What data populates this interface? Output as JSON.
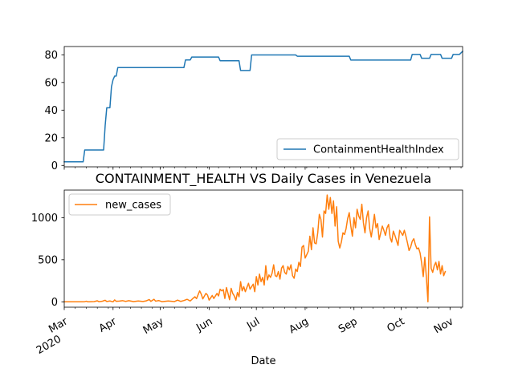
{
  "chart_data": [
    {
      "type": "line",
      "title": "",
      "xlabel": "",
      "ylabel": "",
      "ylim": [
        -1,
        86
      ],
      "yticks": [
        0,
        20,
        40,
        60,
        80
      ],
      "legend": "bottom-right",
      "grid": false,
      "series": [
        {
          "name": "ContainmentHealthIndex",
          "color": "#1f77b4",
          "points": [
            [
              "2020-03-01",
              2.6
            ],
            [
              "2020-03-13",
              2.6
            ],
            [
              "2020-03-14",
              11.2
            ],
            [
              "2020-03-26",
              11.2
            ],
            [
              "2020-03-27",
              29
            ],
            [
              "2020-03-28",
              41.7
            ],
            [
              "2020-03-30",
              41.7
            ],
            [
              "2020-03-31",
              57
            ],
            [
              "2020-04-01",
              62
            ],
            [
              "2020-04-02",
              64.6
            ],
            [
              "2020-04-03",
              64.6
            ],
            [
              "2020-04-04",
              70.8
            ],
            [
              "2020-05-16",
              70.8
            ],
            [
              "2020-05-17",
              76.3
            ],
            [
              "2020-05-20",
              76.3
            ],
            [
              "2020-05-21",
              78.4
            ],
            [
              "2020-06-07",
              78.4
            ],
            [
              "2020-06-08",
              75.7
            ],
            [
              "2020-06-20",
              75.7
            ],
            [
              "2020-06-21",
              68.7
            ],
            [
              "2020-06-27",
              68.7
            ],
            [
              "2020-06-28",
              79.9
            ],
            [
              "2020-07-26",
              79.9
            ],
            [
              "2020-07-27",
              79
            ],
            [
              "2020-08-29",
              79
            ],
            [
              "2020-08-30",
              76.2
            ],
            [
              "2020-10-07",
              76.2
            ],
            [
              "2020-10-08",
              80.3
            ],
            [
              "2020-10-13",
              80.3
            ],
            [
              "2020-10-14",
              77.5
            ],
            [
              "2020-10-19",
              77.5
            ],
            [
              "2020-10-20",
              80.3
            ],
            [
              "2020-10-26",
              80.3
            ],
            [
              "2020-10-27",
              77.5
            ],
            [
              "2020-11-02",
              77.5
            ],
            [
              "2020-11-03",
              80.3
            ],
            [
              "2020-11-07",
              80.3
            ],
            [
              "2020-11-09",
              82.5
            ]
          ]
        }
      ]
    },
    {
      "type": "line",
      "title": "CONTAINMENT_HEALTH VS Daily Cases in Venezuela",
      "xlabel": "Date",
      "ylabel": "",
      "ylim": [
        -64,
        1328
      ],
      "yticks": [
        0,
        500,
        1000
      ],
      "legend": "top-left",
      "grid": false,
      "series": [
        {
          "name": "new_cases",
          "color": "#ff7f0e",
          "points": [
            [
              "2020-03-01",
              0
            ],
            [
              "2020-03-13",
              0
            ],
            [
              "2020-03-14",
              2
            ],
            [
              "2020-03-15",
              7
            ],
            [
              "2020-03-16",
              0
            ],
            [
              "2020-03-17",
              0
            ],
            [
              "2020-03-20",
              3
            ],
            [
              "2020-03-22",
              12
            ],
            [
              "2020-03-23",
              2
            ],
            [
              "2020-03-25",
              6
            ],
            [
              "2020-03-27",
              18
            ],
            [
              "2020-03-28",
              4
            ],
            [
              "2020-03-30",
              10
            ],
            [
              "2020-04-01",
              0
            ],
            [
              "2020-04-02",
              22
            ],
            [
              "2020-04-03",
              6
            ],
            [
              "2020-04-05",
              9
            ],
            [
              "2020-04-07",
              14
            ],
            [
              "2020-04-09",
              5
            ],
            [
              "2020-04-11",
              13
            ],
            [
              "2020-04-14",
              3
            ],
            [
              "2020-04-17",
              10
            ],
            [
              "2020-04-20",
              4
            ],
            [
              "2020-04-22",
              11
            ],
            [
              "2020-04-24",
              27
            ],
            [
              "2020-04-25",
              5
            ],
            [
              "2020-04-27",
              30
            ],
            [
              "2020-04-28",
              8
            ],
            [
              "2020-04-30",
              15
            ],
            [
              "2020-05-02",
              2
            ],
            [
              "2020-05-06",
              10
            ],
            [
              "2020-05-10",
              3
            ],
            [
              "2020-05-12",
              20
            ],
            [
              "2020-05-14",
              5
            ],
            [
              "2020-05-16",
              15
            ],
            [
              "2020-05-18",
              30
            ],
            [
              "2020-05-20",
              10
            ],
            [
              "2020-05-22",
              45
            ],
            [
              "2020-05-23",
              60
            ],
            [
              "2020-05-24",
              38
            ],
            [
              "2020-05-26",
              130
            ],
            [
              "2020-05-27",
              92
            ],
            [
              "2020-05-28",
              35
            ],
            [
              "2020-05-30",
              100
            ],
            [
              "2020-05-31",
              80
            ],
            [
              "2020-06-01",
              20
            ],
            [
              "2020-06-03",
              75
            ],
            [
              "2020-06-04",
              40
            ],
            [
              "2020-06-06",
              100
            ],
            [
              "2020-06-07",
              70
            ],
            [
              "2020-06-08",
              150
            ],
            [
              "2020-06-09",
              130
            ],
            [
              "2020-06-10",
              145
            ],
            [
              "2020-06-11",
              40
            ],
            [
              "2020-06-12",
              170
            ],
            [
              "2020-06-13",
              100
            ],
            [
              "2020-06-14",
              25
            ],
            [
              "2020-06-15",
              160
            ],
            [
              "2020-06-16",
              100
            ],
            [
              "2020-06-17",
              70
            ],
            [
              "2020-06-18",
              20
            ],
            [
              "2020-06-19",
              110
            ],
            [
              "2020-06-20",
              60
            ],
            [
              "2020-06-21",
              240
            ],
            [
              "2020-06-22",
              130
            ],
            [
              "2020-06-23",
              180
            ],
            [
              "2020-06-24",
              120
            ],
            [
              "2020-06-26",
              220
            ],
            [
              "2020-06-27",
              150
            ],
            [
              "2020-06-29",
              210
            ],
            [
              "2020-06-30",
              120
            ],
            [
              "2020-07-01",
              300
            ],
            [
              "2020-07-02",
              200
            ],
            [
              "2020-07-03",
              330
            ],
            [
              "2020-07-04",
              240
            ],
            [
              "2020-07-05",
              290
            ],
            [
              "2020-07-06",
              200
            ],
            [
              "2020-07-07",
              430
            ],
            [
              "2020-07-08",
              260
            ],
            [
              "2020-07-09",
              320
            ],
            [
              "2020-07-10",
              290
            ],
            [
              "2020-07-11",
              340
            ],
            [
              "2020-07-12",
              440
            ],
            [
              "2020-07-13",
              310
            ],
            [
              "2020-07-14",
              300
            ],
            [
              "2020-07-15",
              360
            ],
            [
              "2020-07-16",
              270
            ],
            [
              "2020-07-17",
              400
            ],
            [
              "2020-07-18",
              430
            ],
            [
              "2020-07-19",
              350
            ],
            [
              "2020-07-20",
              330
            ],
            [
              "2020-07-21",
              420
            ],
            [
              "2020-07-22",
              380
            ],
            [
              "2020-07-23",
              440
            ],
            [
              "2020-07-24",
              310
            ],
            [
              "2020-07-25",
              280
            ],
            [
              "2020-07-26",
              390
            ],
            [
              "2020-07-27",
              360
            ],
            [
              "2020-07-28",
              470
            ],
            [
              "2020-07-29",
              420
            ],
            [
              "2020-07-30",
              650
            ],
            [
              "2020-07-31",
              670
            ],
            [
              "2020-08-01",
              520
            ],
            [
              "2020-08-02",
              560
            ],
            [
              "2020-08-03",
              600
            ],
            [
              "2020-08-04",
              780
            ],
            [
              "2020-08-05",
              620
            ],
            [
              "2020-08-06",
              880
            ],
            [
              "2020-08-07",
              700
            ],
            [
              "2020-08-08",
              690
            ],
            [
              "2020-08-09",
              820
            ],
            [
              "2020-08-10",
              1040
            ],
            [
              "2020-08-11",
              980
            ],
            [
              "2020-08-12",
              770
            ],
            [
              "2020-08-13",
              1080
            ],
            [
              "2020-08-14",
              1050
            ],
            [
              "2020-08-15",
              1270
            ],
            [
              "2020-08-16",
              1100
            ],
            [
              "2020-08-17",
              1240
            ],
            [
              "2020-08-18",
              1050
            ],
            [
              "2020-08-19",
              1200
            ],
            [
              "2020-08-20",
              900
            ],
            [
              "2020-08-21",
              1130
            ],
            [
              "2020-08-22",
              720
            ],
            [
              "2020-08-23",
              640
            ],
            [
              "2020-08-24",
              710
            ],
            [
              "2020-08-25",
              820
            ],
            [
              "2020-08-26",
              800
            ],
            [
              "2020-08-27",
              870
            ],
            [
              "2020-08-28",
              990
            ],
            [
              "2020-08-29",
              1060
            ],
            [
              "2020-08-30",
              900
            ],
            [
              "2020-08-31",
              780
            ],
            [
              "2020-09-01",
              1000
            ],
            [
              "2020-09-02",
              880
            ],
            [
              "2020-09-03",
              1100
            ],
            [
              "2020-09-04",
              1020
            ],
            [
              "2020-09-05",
              980
            ],
            [
              "2020-09-06",
              1160
            ],
            [
              "2020-09-07",
              940
            ],
            [
              "2020-09-08",
              820
            ],
            [
              "2020-09-09",
              1000
            ],
            [
              "2020-09-10",
              1080
            ],
            [
              "2020-09-11",
              870
            ],
            [
              "2020-09-12",
              770
            ],
            [
              "2020-09-13",
              900
            ],
            [
              "2020-09-14",
              1040
            ],
            [
              "2020-09-15",
              880
            ],
            [
              "2020-09-16",
              930
            ],
            [
              "2020-09-17",
              740
            ],
            [
              "2020-09-18",
              820
            ],
            [
              "2020-09-19",
              900
            ],
            [
              "2020-09-20",
              850
            ],
            [
              "2020-09-21",
              790
            ],
            [
              "2020-09-22",
              880
            ],
            [
              "2020-09-23",
              920
            ],
            [
              "2020-09-24",
              760
            ],
            [
              "2020-09-25",
              710
            ],
            [
              "2020-09-26",
              840
            ],
            [
              "2020-09-27",
              790
            ],
            [
              "2020-09-28",
              730
            ],
            [
              "2020-09-29",
              670
            ],
            [
              "2020-09-30",
              850
            ],
            [
              "2020-10-01",
              820
            ],
            [
              "2020-10-02",
              790
            ],
            [
              "2020-10-03",
              850
            ],
            [
              "2020-10-04",
              780
            ],
            [
              "2020-10-05",
              700
            ],
            [
              "2020-10-06",
              610
            ],
            [
              "2020-10-07",
              650
            ],
            [
              "2020-10-08",
              720
            ],
            [
              "2020-10-09",
              750
            ],
            [
              "2020-10-10",
              680
            ],
            [
              "2020-10-11",
              630
            ],
            [
              "2020-10-12",
              640
            ],
            [
              "2020-10-13",
              580
            ],
            [
              "2020-10-14",
              460
            ],
            [
              "2020-10-15",
              300
            ],
            [
              "2020-10-16",
              530
            ],
            [
              "2020-10-17",
              290
            ],
            [
              "2020-10-18",
              0
            ],
            [
              "2020-10-19",
              1010
            ],
            [
              "2020-10-20",
              400
            ],
            [
              "2020-10-21",
              350
            ],
            [
              "2020-10-22",
              430
            ],
            [
              "2020-10-23",
              470
            ],
            [
              "2020-10-24",
              380
            ],
            [
              "2020-10-25",
              480
            ],
            [
              "2020-10-26",
              330
            ],
            [
              "2020-10-27",
              430
            ],
            [
              "2020-10-28",
              310
            ],
            [
              "2020-10-29",
              360
            ]
          ]
        }
      ]
    }
  ],
  "x_axis": {
    "start": "2020-03-01",
    "end": "2020-11-09",
    "ticks": [
      {
        "date": "2020-03-01",
        "label": "Mar",
        "sublabel": "2020"
      },
      {
        "date": "2020-04-01",
        "label": "Apr",
        "sublabel": ""
      },
      {
        "date": "2020-05-01",
        "label": "May",
        "sublabel": ""
      },
      {
        "date": "2020-06-01",
        "label": "Jun",
        "sublabel": ""
      },
      {
        "date": "2020-07-01",
        "label": "Jul",
        "sublabel": ""
      },
      {
        "date": "2020-08-01",
        "label": "Aug",
        "sublabel": ""
      },
      {
        "date": "2020-09-01",
        "label": "Sep",
        "sublabel": ""
      },
      {
        "date": "2020-10-01",
        "label": "Oct",
        "sublabel": ""
      },
      {
        "date": "2020-11-01",
        "label": "Nov",
        "sublabel": ""
      }
    ]
  }
}
